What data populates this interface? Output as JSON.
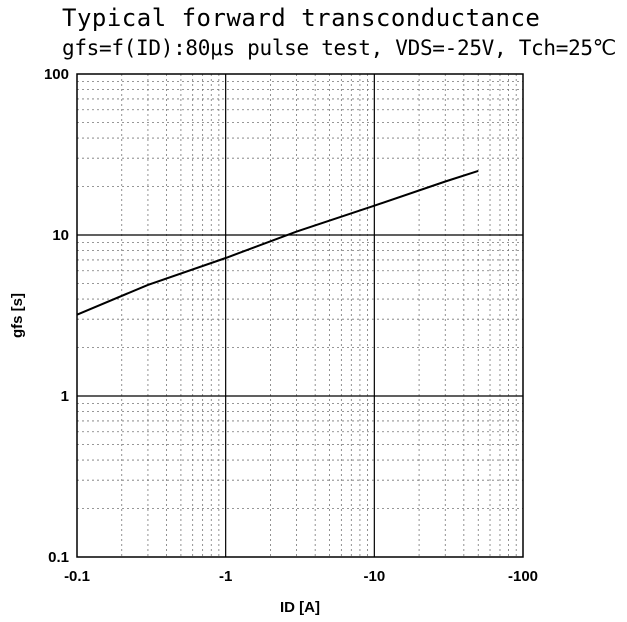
{
  "chart_data": {
    "type": "line",
    "title": "Typical forward transconductance",
    "subtitle": "gfs=f(ID):80μs pulse test, VDS=-25V, Tch=25℃",
    "xlabel": "ID [A]",
    "ylabel": "gfs [s]",
    "xscale": "log",
    "yscale": "log",
    "xlim": [
      -0.1,
      -100
    ],
    "ylim": [
      0.1,
      100
    ],
    "x_tick_labels": [
      "-0.1",
      "-1",
      "-10",
      "-100"
    ],
    "y_tick_labels": [
      "0.1",
      "1",
      "10",
      "100"
    ],
    "grid": true,
    "series": [
      {
        "x": [
          -0.1,
          -0.3,
          -1,
          -3,
          -10,
          -30,
          -50
        ],
        "y": [
          3.2,
          4.9,
          7.2,
          10.5,
          15.2,
          21.5,
          25
        ]
      }
    ]
  }
}
